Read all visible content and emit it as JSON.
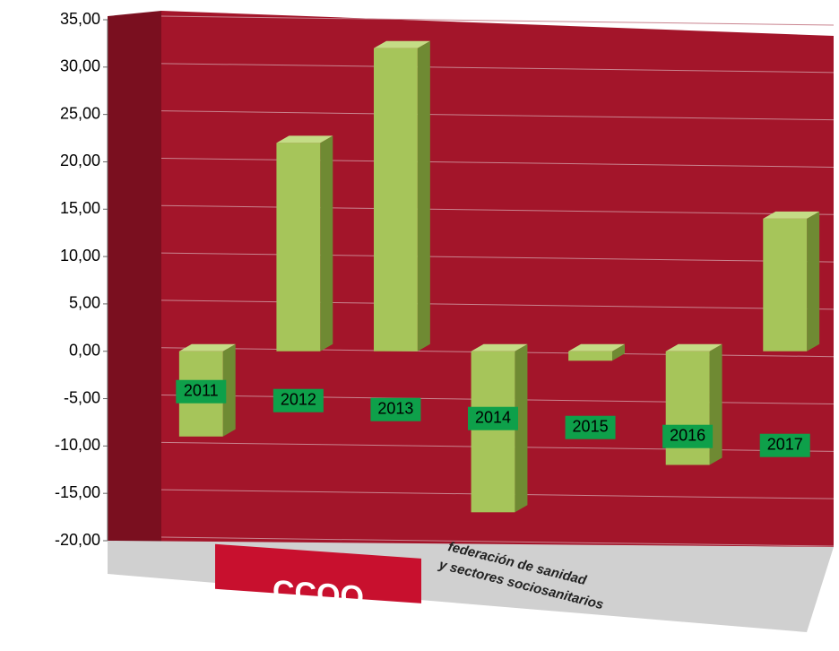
{
  "chart_data": {
    "type": "bar",
    "categories": [
      "2011",
      "2012",
      "2013",
      "2014",
      "2015",
      "2016",
      "2017"
    ],
    "values": [
      -9,
      22,
      32,
      -17,
      -1,
      -12,
      14
    ],
    "color": "#a6c55a",
    "ylim": [
      -20,
      35
    ],
    "yticks": [
      {
        "value": -20,
        "label": "-20,00"
      },
      {
        "value": -15,
        "label": "-15,00"
      },
      {
        "value": -10,
        "label": "-10,00"
      },
      {
        "value": -5,
        "label": "-5,00"
      },
      {
        "value": 0,
        "label": "0,00"
      },
      {
        "value": 5,
        "label": "5,00"
      },
      {
        "value": 10,
        "label": "10,00"
      },
      {
        "value": 15,
        "label": "15,00"
      },
      {
        "value": 20,
        "label": "20,00"
      },
      {
        "value": 25,
        "label": "25,00"
      },
      {
        "value": 30,
        "label": "30,00"
      },
      {
        "value": 35,
        "label": "35,00"
      }
    ],
    "grid": true,
    "label_color": "#0ea04a",
    "wall_color": "#a3152a"
  },
  "logo": {
    "name": "CCOO",
    "lines": [
      "federación de sanidad",
      "y sectores sociosanitarios"
    ]
  }
}
